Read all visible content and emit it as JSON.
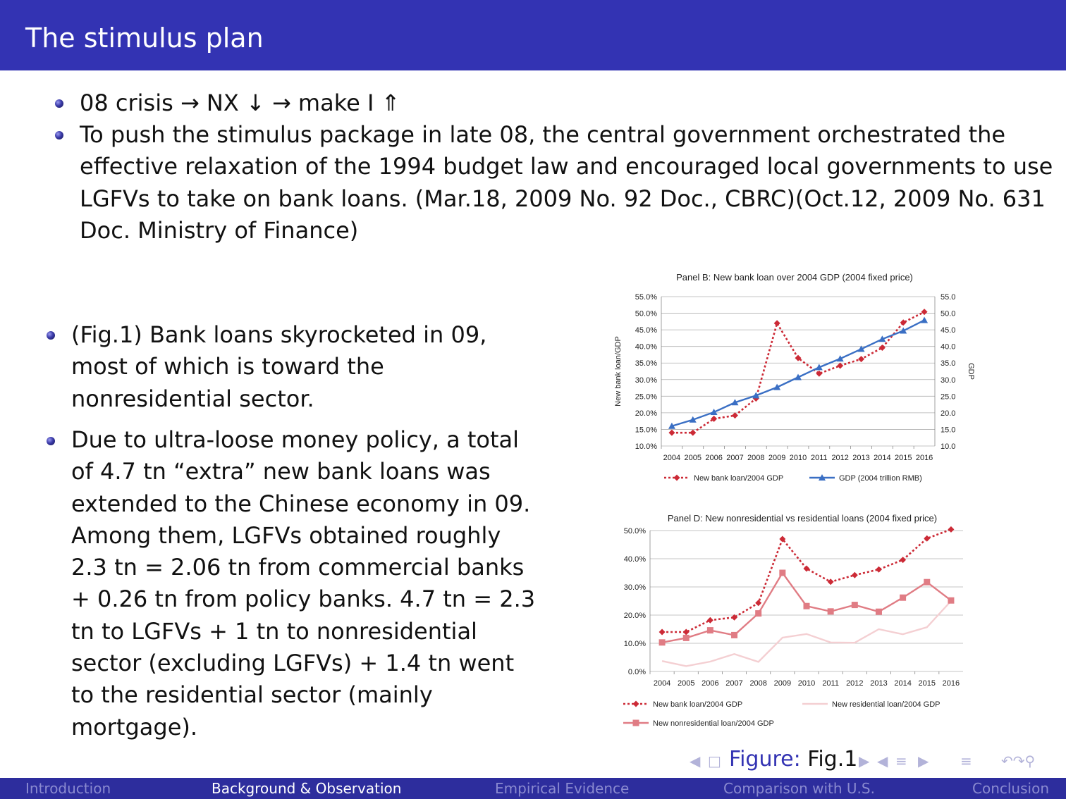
{
  "slide_title": "The stimulus plan",
  "top_bullets": [
    "08 crisis → NX ↓ → make I ⇑",
    "To push the stimulus package in late 08, the central government orchestrated the effective relaxation of the 1994 budget law and encouraged local governments to use LGFVs to take on bank loans. (Mar.18, 2009 No. 92 Doc., CBRC)(Oct.12, 2009 No. 631 Doc. Ministry of Finance)"
  ],
  "left_bullets": [
    "(Fig.1) Bank loans skyrocketed in 09, most of which is toward the nonresidential sector.",
    "Due to ultra-loose money policy, a total of 4.7 tn “extra” new bank loans was extended to the Chinese economy in 09. Among them, LGFVs obtained roughly 2.3 tn = 2.06 tn from commercial banks + 0.26 tn from policy banks. 4.7 tn = 2.3 tn to LGFVs + 1 tn to nonresidential sector (excluding LGFVs) + 1.4 tn went to the residential sector (mainly mortgage)."
  ],
  "figure": {
    "label": "Figure:",
    "caption": "Fig.1"
  },
  "nav_icons": [
    "nav-left-arrow",
    "nav-frame",
    "nav-right-arrow",
    "nav-section",
    "nav-align",
    "nav-search"
  ],
  "footer": {
    "sections": [
      "Introduction",
      "Background & Observation",
      "Empirical Evidence",
      "Comparison with U.S.",
      "Conclusion"
    ],
    "active": "Background & Observation"
  },
  "colors": {
    "title_bar": "#3333b3",
    "footer_bar": "#2d2d9d",
    "loan_red": "#cc2a36",
    "gdp_blue": "#3a6fc4",
    "nonres_pink": "#e07c84",
    "res_lightpink": "#f4cfd2"
  },
  "chart_data": [
    {
      "type": "line",
      "title": "Panel B: New bank loan over 2004 GDP (2004 fixed price)",
      "x": [
        "2004",
        "2005",
        "2006",
        "2007",
        "2008",
        "2009",
        "2010",
        "2011",
        "2012",
        "2013",
        "2014",
        "2015",
        "2016"
      ],
      "ylabel": "New bank loan/GDP",
      "y2label": "GDP",
      "ylim": [
        10,
        55
      ],
      "y_ticks": [
        "10.0%",
        "15.0%",
        "20.0%",
        "25.0%",
        "30.0%",
        "35.0%",
        "40.0%",
        "45.0%",
        "50.0%",
        "55.0%"
      ],
      "y2_ticks": [
        "10.0",
        "15.0",
        "20.0",
        "25.0",
        "30.0",
        "35.0",
        "40.0",
        "45.0",
        "50.0",
        "55.0"
      ],
      "grid": true,
      "legend_position": "bottom",
      "series": [
        {
          "name": "New bank loan/2004 GDP",
          "axis": "left",
          "style": "dotted-diamond",
          "color": "#cc2a36",
          "values": [
            14.0,
            14.0,
            18.2,
            19.2,
            24.3,
            47.0,
            36.5,
            31.8,
            34.2,
            36.2,
            39.6,
            47.2,
            50.4
          ]
        },
        {
          "name": "GDP (2004 trillion RMB)",
          "axis": "right",
          "style": "solid-triangle",
          "color": "#3a6fc4",
          "values": [
            16.0,
            17.9,
            20.2,
            23.1,
            25.2,
            27.7,
            30.7,
            33.7,
            36.3,
            39.2,
            42.2,
            44.7,
            47.9
          ]
        }
      ]
    },
    {
      "type": "line",
      "title": "Panel D: New nonresidential vs residential loans (2004 fixed price)",
      "x": [
        "2004",
        "2005",
        "2006",
        "2007",
        "2008",
        "2009",
        "2010",
        "2011",
        "2012",
        "2013",
        "2014",
        "2015",
        "2016"
      ],
      "ylim": [
        0,
        50
      ],
      "y_ticks": [
        "0.0%",
        "10.0%",
        "20.0%",
        "30.0%",
        "40.0%",
        "50.0%"
      ],
      "grid": true,
      "legend_position": "bottom",
      "series": [
        {
          "name": "New bank loan/2004 GDP",
          "style": "dotted-diamond",
          "color": "#cc2a36",
          "values": [
            14.0,
            14.0,
            18.2,
            19.2,
            24.3,
            47.0,
            36.5,
            31.8,
            34.2,
            36.2,
            39.6,
            47.2,
            50.4
          ]
        },
        {
          "name": "New residential loan/2004 GDP",
          "style": "solid",
          "color": "#f4cfd2",
          "values": [
            3.7,
            1.9,
            3.5,
            6.2,
            3.4,
            12.0,
            13.3,
            10.3,
            10.2,
            15.0,
            13.2,
            15.7,
            25.0
          ]
        },
        {
          "name": "New nonresidential loan/2004 GDP",
          "style": "solid-square",
          "color": "#e07c84",
          "values": [
            10.3,
            11.9,
            14.6,
            12.9,
            20.6,
            35.0,
            23.2,
            21.3,
            23.6,
            21.2,
            26.2,
            31.7,
            25.2
          ]
        }
      ]
    }
  ]
}
